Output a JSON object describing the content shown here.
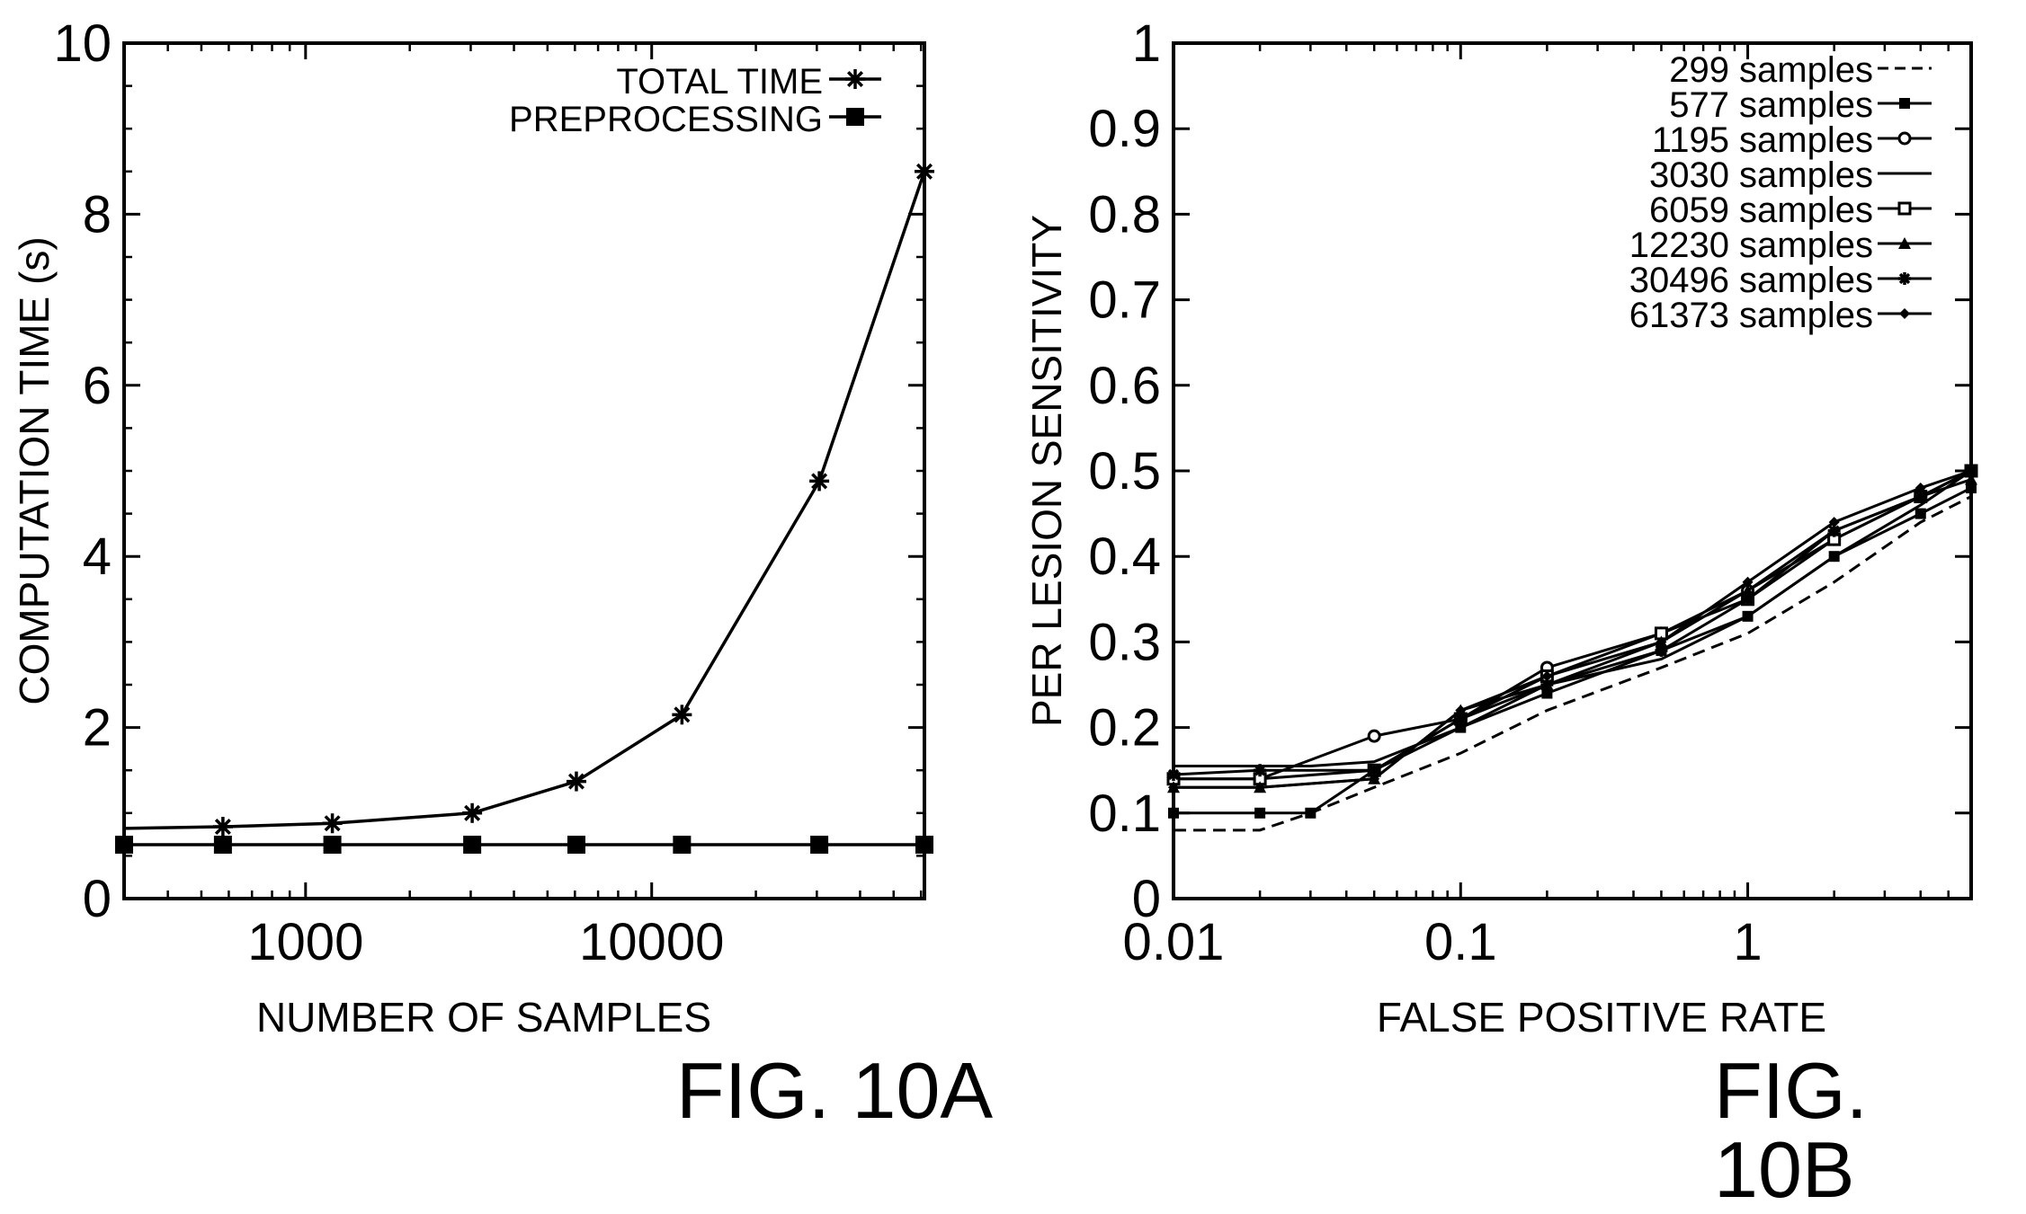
{
  "figures": [
    {
      "label": "FIG. 10A"
    },
    {
      "label": "FIG. 10B"
    }
  ],
  "chart_data": [
    {
      "id": "10A",
      "type": "line",
      "xlabel": "NUMBER OF SAMPLES",
      "ylabel": "COMPUTATION TIME (s)",
      "x_scale": "log",
      "xlim": [
        299,
        61373
      ],
      "ylim": [
        0,
        10
      ],
      "x_ticks": [
        1000,
        10000
      ],
      "x_tick_labels": [
        "1000",
        "10000"
      ],
      "y_ticks": [
        0,
        2,
        4,
        6,
        8,
        10
      ],
      "y_tick_labels": [
        "0",
        "2",
        "4",
        "6",
        "8",
        "10"
      ],
      "grid": false,
      "legend_position": "top-right",
      "x": [
        299,
        577,
        1195,
        3030,
        6059,
        12230,
        30496,
        61373
      ],
      "series": [
        {
          "name": "TOTAL TIME",
          "marker": "asterisk",
          "values": [
            0.82,
            0.84,
            0.88,
            1.0,
            1.37,
            2.15,
            4.88,
            8.5
          ]
        },
        {
          "name": "PREPROCESSING",
          "marker": "filled-square",
          "values": [
            0.63,
            0.63,
            0.63,
            0.63,
            0.63,
            0.63,
            0.63,
            0.63
          ]
        }
      ]
    },
    {
      "id": "10B",
      "type": "line",
      "xlabel": "FALSE POSITIVE RATE",
      "ylabel": "PER LESION SENSITIVITY",
      "x_scale": "log",
      "xlim": [
        0.01,
        6
      ],
      "ylim": [
        0,
        1
      ],
      "x_ticks": [
        0.01,
        0.1,
        1
      ],
      "x_tick_labels": [
        "0.01",
        "0.1",
        "1"
      ],
      "y_ticks": [
        0,
        0.1,
        0.2,
        0.3,
        0.4,
        0.5,
        0.6,
        0.7,
        0.8,
        0.9,
        1
      ],
      "y_tick_labels": [
        "0",
        "0.1",
        "0.2",
        "0.3",
        "0.4",
        "0.5",
        "0.6",
        "0.7",
        "0.8",
        "0.9",
        "1"
      ],
      "grid": false,
      "legend_position": "top-right",
      "series": [
        {
          "name": "299 samples",
          "marker": "none",
          "dash": "dashed",
          "points": [
            [
              0.01,
              0.08
            ],
            [
              0.02,
              0.08
            ],
            [
              0.03,
              0.1
            ],
            [
              0.05,
              0.13
            ],
            [
              0.1,
              0.17
            ],
            [
              0.2,
              0.22
            ],
            [
              0.5,
              0.27
            ],
            [
              1,
              0.31
            ],
            [
              2,
              0.37
            ],
            [
              4,
              0.44
            ],
            [
              6,
              0.47
            ]
          ]
        },
        {
          "name": "577 samples",
          "marker": "small-square",
          "points": [
            [
              0.01,
              0.1
            ],
            [
              0.02,
              0.1
            ],
            [
              0.03,
              0.1
            ],
            [
              0.05,
              0.15
            ],
            [
              0.1,
              0.2
            ],
            [
              0.2,
              0.24
            ],
            [
              0.5,
              0.29
            ],
            [
              1,
              0.33
            ],
            [
              2,
              0.4
            ],
            [
              4,
              0.45
            ],
            [
              6,
              0.48
            ]
          ]
        },
        {
          "name": "1195 samples",
          "marker": "open-circle",
          "points": [
            [
              0.01,
              0.14
            ],
            [
              0.02,
              0.14
            ],
            [
              0.05,
              0.19
            ],
            [
              0.1,
              0.21
            ],
            [
              0.2,
              0.27
            ],
            [
              0.5,
              0.31
            ],
            [
              1,
              0.36
            ],
            [
              2,
              0.42
            ],
            [
              4,
              0.47
            ],
            [
              6,
              0.5
            ]
          ]
        },
        {
          "name": "3030 samples",
          "marker": "none",
          "dash": "solid",
          "points": [
            [
              0.01,
              0.155
            ],
            [
              0.02,
              0.155
            ],
            [
              0.03,
              0.155
            ],
            [
              0.05,
              0.16
            ],
            [
              0.1,
              0.2
            ],
            [
              0.2,
              0.25
            ],
            [
              0.5,
              0.28
            ],
            [
              1,
              0.33
            ],
            [
              2,
              0.4
            ],
            [
              4,
              0.46
            ],
            [
              6,
              0.5
            ]
          ]
        },
        {
          "name": "6059 samples",
          "marker": "open-square",
          "points": [
            [
              0.01,
              0.14
            ],
            [
              0.02,
              0.14
            ],
            [
              0.05,
              0.15
            ],
            [
              0.1,
              0.21
            ],
            [
              0.2,
              0.26
            ],
            [
              0.5,
              0.31
            ],
            [
              1,
              0.35
            ],
            [
              2,
              0.42
            ],
            [
              4,
              0.47
            ],
            [
              6,
              0.5
            ]
          ]
        },
        {
          "name": "12230 samples",
          "marker": "triangle",
          "points": [
            [
              0.01,
              0.13
            ],
            [
              0.02,
              0.13
            ],
            [
              0.05,
              0.14
            ],
            [
              0.1,
              0.22
            ],
            [
              0.2,
              0.25
            ],
            [
              0.5,
              0.3
            ],
            [
              1,
              0.36
            ],
            [
              2,
              0.43
            ],
            [
              4,
              0.47
            ],
            [
              6,
              0.49
            ]
          ]
        },
        {
          "name": "30496 samples",
          "marker": "asterisk",
          "points": [
            [
              0.01,
              0.145
            ],
            [
              0.02,
              0.15
            ],
            [
              0.05,
              0.15
            ],
            [
              0.1,
              0.21
            ],
            [
              0.2,
              0.25
            ],
            [
              0.5,
              0.29
            ],
            [
              1,
              0.35
            ],
            [
              2,
              0.43
            ],
            [
              4,
              0.47
            ],
            [
              6,
              0.5
            ]
          ]
        },
        {
          "name": "61373 samples",
          "marker": "small-diamond",
          "points": [
            [
              0.01,
              0.13
            ],
            [
              0.02,
              0.13
            ],
            [
              0.05,
              0.14
            ],
            [
              0.1,
              0.22
            ],
            [
              0.2,
              0.26
            ],
            [
              0.5,
              0.3
            ],
            [
              1,
              0.37
            ],
            [
              2,
              0.44
            ],
            [
              4,
              0.48
            ],
            [
              6,
              0.5
            ]
          ]
        }
      ]
    }
  ]
}
